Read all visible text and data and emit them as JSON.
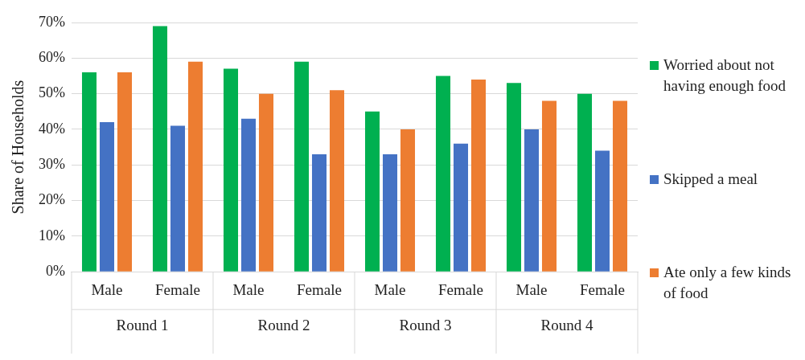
{
  "chart_data": {
    "type": "bar",
    "ylabel": "Share of Households",
    "categories": [
      "Male",
      "Female",
      "Male",
      "Female",
      "Male",
      "Female",
      "Male",
      "Female"
    ],
    "annotations": [
      "Round 1",
      "Round 2",
      "Round 3",
      "Round 4"
    ],
    "series": [
      {
        "name": "Worried about not having enough food",
        "color": "#00b050",
        "values": [
          56,
          69,
          57,
          59,
          45,
          55,
          53,
          50
        ]
      },
      {
        "name": "Skipped a meal",
        "color": "#4472c4",
        "values": [
          42,
          41,
          43,
          33,
          33,
          36,
          40,
          34
        ]
      },
      {
        "name": "Ate only a few kinds of food",
        "color": "#ed7d31",
        "values": [
          56,
          59,
          50,
          51,
          40,
          54,
          48,
          48
        ]
      }
    ],
    "ylim": [
      0,
      70
    ],
    "yticks": [
      {
        "value": 0,
        "label": "0%"
      },
      {
        "value": 10,
        "label": "10%"
      },
      {
        "value": 20,
        "label": "20%"
      },
      {
        "value": 30,
        "label": "30%"
      },
      {
        "value": 40,
        "label": "40%"
      },
      {
        "value": 50,
        "label": "50%"
      },
      {
        "value": 60,
        "label": "60%"
      },
      {
        "value": 70,
        "label": "70%"
      }
    ],
    "grid": "y",
    "legend": "right"
  }
}
